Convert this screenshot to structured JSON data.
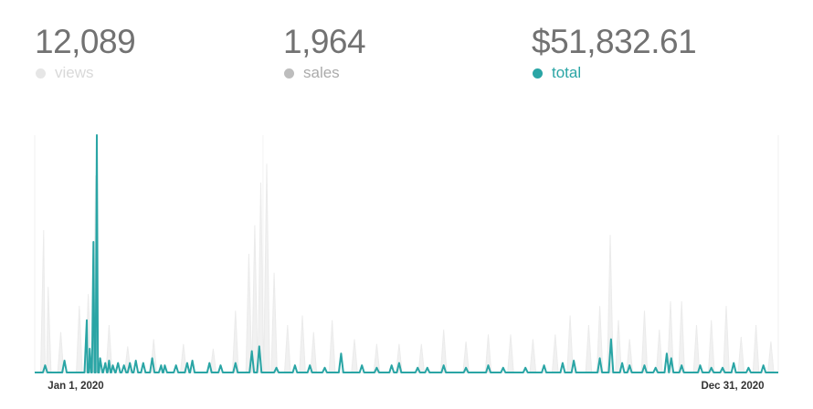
{
  "colors": {
    "views": "#e6e6e6",
    "sales": "#bdbdbd",
    "total": "#2aa5a5",
    "value_text": "#727272",
    "views_label": "#d9d9d9",
    "sales_label": "#ababab"
  },
  "stats": [
    {
      "id": "views",
      "value": "12,089",
      "label": "views"
    },
    {
      "id": "sales",
      "value": "1,964",
      "label": "sales"
    },
    {
      "id": "total",
      "value": "$51,832.61",
      "label": "total"
    }
  ],
  "chart_data": {
    "type": "line",
    "x_start_label": "Jan 1, 2020",
    "x_end_label": "Dec 31, 2020",
    "ylim": [
      0,
      1
    ],
    "grid": false,
    "legend": "top",
    "series": [
      {
        "name": "views",
        "style": "area",
        "spikes": [
          [
            0.012,
            0.6
          ],
          [
            0.018,
            0.36
          ],
          [
            0.035,
            0.17
          ],
          [
            0.06,
            0.28
          ],
          [
            0.072,
            0.33
          ],
          [
            0.082,
            0.83
          ],
          [
            0.1,
            0.2
          ],
          [
            0.125,
            0.11
          ],
          [
            0.16,
            0.14
          ],
          [
            0.2,
            0.12
          ],
          [
            0.24,
            0.1
          ],
          [
            0.27,
            0.26
          ],
          [
            0.288,
            0.5
          ],
          [
            0.296,
            0.62
          ],
          [
            0.304,
            0.8
          ],
          [
            0.312,
            0.88
          ],
          [
            0.322,
            0.42
          ],
          [
            0.34,
            0.2
          ],
          [
            0.36,
            0.24
          ],
          [
            0.375,
            0.17
          ],
          [
            0.4,
            0.22
          ],
          [
            0.43,
            0.14
          ],
          [
            0.46,
            0.12
          ],
          [
            0.49,
            0.12
          ],
          [
            0.52,
            0.12
          ],
          [
            0.55,
            0.18
          ],
          [
            0.58,
            0.13
          ],
          [
            0.61,
            0.16
          ],
          [
            0.64,
            0.16
          ],
          [
            0.67,
            0.14
          ],
          [
            0.7,
            0.16
          ],
          [
            0.72,
            0.24
          ],
          [
            0.745,
            0.2
          ],
          [
            0.76,
            0.28
          ],
          [
            0.774,
            0.58
          ],
          [
            0.785,
            0.22
          ],
          [
            0.8,
            0.14
          ],
          [
            0.82,
            0.26
          ],
          [
            0.84,
            0.18
          ],
          [
            0.855,
            0.3
          ],
          [
            0.87,
            0.3
          ],
          [
            0.89,
            0.2
          ],
          [
            0.91,
            0.22
          ],
          [
            0.93,
            0.28
          ],
          [
            0.95,
            0.15
          ],
          [
            0.97,
            0.2
          ],
          [
            0.99,
            0.13
          ]
        ]
      },
      {
        "name": "total",
        "style": "line",
        "spikes": [
          [
            0.014,
            0.03
          ],
          [
            0.04,
            0.05
          ],
          [
            0.07,
            0.22
          ],
          [
            0.074,
            0.1
          ],
          [
            0.079,
            0.55
          ],
          [
            0.0835,
            1.0
          ],
          [
            0.088,
            0.06
          ],
          [
            0.095,
            0.04
          ],
          [
            0.1,
            0.05
          ],
          [
            0.105,
            0.03
          ],
          [
            0.112,
            0.04
          ],
          [
            0.12,
            0.03
          ],
          [
            0.128,
            0.04
          ],
          [
            0.136,
            0.05
          ],
          [
            0.146,
            0.04
          ],
          [
            0.158,
            0.06
          ],
          [
            0.17,
            0.03
          ],
          [
            0.175,
            0.03
          ],
          [
            0.19,
            0.03
          ],
          [
            0.205,
            0.04
          ],
          [
            0.212,
            0.05
          ],
          [
            0.235,
            0.04
          ],
          [
            0.25,
            0.03
          ],
          [
            0.27,
            0.04
          ],
          [
            0.292,
            0.09
          ],
          [
            0.302,
            0.11
          ],
          [
            0.325,
            0.02
          ],
          [
            0.35,
            0.03
          ],
          [
            0.37,
            0.03
          ],
          [
            0.39,
            0.02
          ],
          [
            0.412,
            0.08
          ],
          [
            0.44,
            0.03
          ],
          [
            0.46,
            0.02
          ],
          [
            0.48,
            0.03
          ],
          [
            0.49,
            0.04
          ],
          [
            0.515,
            0.02
          ],
          [
            0.528,
            0.02
          ],
          [
            0.55,
            0.03
          ],
          [
            0.58,
            0.02
          ],
          [
            0.61,
            0.03
          ],
          [
            0.63,
            0.02
          ],
          [
            0.66,
            0.02
          ],
          [
            0.685,
            0.03
          ],
          [
            0.71,
            0.04
          ],
          [
            0.725,
            0.05
          ],
          [
            0.76,
            0.06
          ],
          [
            0.775,
            0.14
          ],
          [
            0.79,
            0.04
          ],
          [
            0.8,
            0.03
          ],
          [
            0.82,
            0.03
          ],
          [
            0.835,
            0.02
          ],
          [
            0.85,
            0.08
          ],
          [
            0.856,
            0.06
          ],
          [
            0.87,
            0.03
          ],
          [
            0.895,
            0.03
          ],
          [
            0.91,
            0.02
          ],
          [
            0.925,
            0.02
          ],
          [
            0.94,
            0.04
          ],
          [
            0.96,
            0.02
          ],
          [
            0.98,
            0.03
          ]
        ]
      }
    ]
  }
}
